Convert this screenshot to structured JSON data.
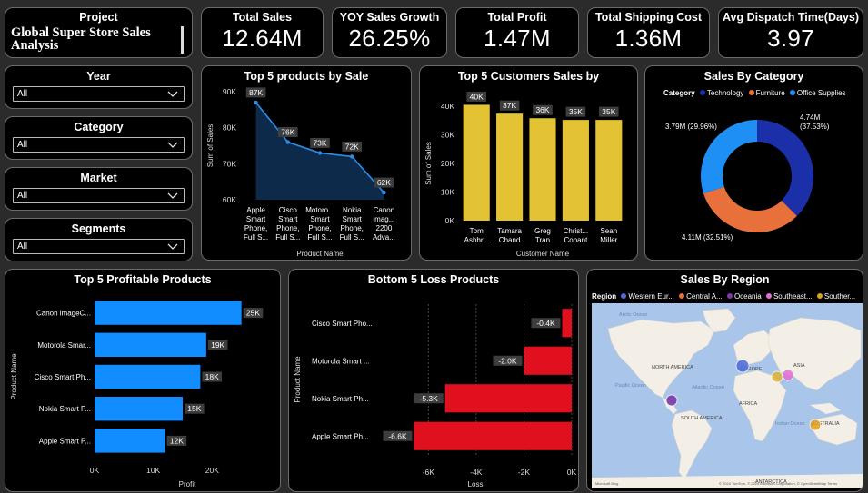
{
  "kpis": {
    "project": {
      "title": "Project",
      "value": "Global Super Store Sales Analysis"
    },
    "total_sales": {
      "title": "Total Sales",
      "value": "12.64M"
    },
    "yoy_growth": {
      "title": "YOY Sales Growth",
      "value": "26.25%"
    },
    "total_profit": {
      "title": "Total Profit",
      "value": "1.47M"
    },
    "shipping_cost": {
      "title": "Total Shipping Cost",
      "value": "1.36M"
    },
    "dispatch_time": {
      "title": "Avg Dispatch Time(Days)",
      "value": "3.97"
    }
  },
  "slicers": [
    {
      "title": "Year",
      "value": "All"
    },
    {
      "title": "Category",
      "value": "All"
    },
    {
      "title": "Market",
      "value": "All"
    },
    {
      "title": "Segments",
      "value": "All"
    }
  ],
  "colors": {
    "blue": "#118dff",
    "line_blue": "#2a8de8",
    "area_blue": "#0d2a4a",
    "gold": "#e3c233",
    "red": "#e0101e",
    "technology": "#1a2fa8",
    "furniture": "#e8703a",
    "office": "#1e8ff5",
    "badge": "#3d3d3d"
  },
  "map": {
    "title": "Sales By Region",
    "legend_label": "Region",
    "legend_items": [
      {
        "label": "Western Eur...",
        "color": "#4f6bd6"
      },
      {
        "label": "Central A...",
        "color": "#e8703a"
      },
      {
        "label": "Oceania",
        "color": "#7a3aa8"
      },
      {
        "label": "Southeast...",
        "color": "#e46fd0"
      },
      {
        "label": "Souther...",
        "color": "#e0a020"
      }
    ],
    "labels": {
      "arctic": "Arctic Ocean",
      "na": "NORTH AMERICA",
      "europe": "EUROPE",
      "asia": "ASIA",
      "africa": "AFRICA",
      "sa": "SOUTH AMERICA",
      "australia": "AUSTRALIA",
      "antarctica": "ANTARCTICA",
      "pacific": "Pacific Ocean",
      "atlantic": "Atlantic Ocean",
      "indian": "Indian Ocean"
    },
    "attribution": "© 2024 TomTom, © 2024 Microsoft Corporation, © OpenStreetMap  Terms",
    "brand": "Microsoft Bing"
  },
  "chart_data": [
    {
      "id": "top5_products",
      "type": "line",
      "title": "Top 5 products by Sale",
      "xlabel": "Product Name",
      "ylabel": "Sum of Sales",
      "categories": [
        [
          "Apple",
          "Smart",
          "Phone,",
          "Full S..."
        ],
        [
          "Cisco",
          "Smart",
          "Phone,",
          "Full S..."
        ],
        [
          "Motoro...",
          "Smart",
          "Phone,",
          "Full S..."
        ],
        [
          "Nokia",
          "Smart",
          "Phone,",
          "Full S..."
        ],
        [
          "Canon",
          "imag...",
          "2200",
          "Adva..."
        ]
      ],
      "values": [
        87000,
        76000,
        73000,
        72000,
        62000
      ],
      "labels": [
        "87K",
        "76K",
        "73K",
        "72K",
        "62K"
      ],
      "yticks": [
        "60K",
        "70K",
        "80K",
        "90K"
      ],
      "ylim": [
        60000,
        90000
      ]
    },
    {
      "id": "top5_customers",
      "type": "bar",
      "title": "Top 5 Customers Sales by",
      "xlabel": "Customer Name",
      "ylabel": "Sum of Sales",
      "categories": [
        [
          "Tom",
          "Ashbr..."
        ],
        [
          "Tamara",
          "Chand"
        ],
        [
          "Greg",
          "Tran"
        ],
        [
          "Christ...",
          "Conant"
        ],
        [
          "Sean",
          "Miller"
        ]
      ],
      "values": [
        40500,
        37400,
        35800,
        35200,
        35200
      ],
      "labels": [
        "40K",
        "37K",
        "36K",
        "35K",
        "35K"
      ],
      "yticks": [
        "0K",
        "10K",
        "20K",
        "30K",
        "40K"
      ],
      "ylim": [
        0,
        40000
      ]
    },
    {
      "id": "sales_by_category",
      "type": "pie",
      "title": "Sales By Category",
      "legend_title": "Category",
      "slices": [
        {
          "name": "Technology",
          "value": 4.74,
          "label": "4.74M",
          "pct": "(37.53%)"
        },
        {
          "name": "Furniture",
          "value": 4.11,
          "label": "4.11M (32.51%)"
        },
        {
          "name": "Office Supplies",
          "value": 3.79,
          "label": "3.79M (29.96%)"
        }
      ]
    },
    {
      "id": "top5_profitable",
      "type": "bar",
      "title": "Top 5 Profitable Products",
      "xlabel": "Profit",
      "ylabel": "Product Name",
      "categories": [
        "Canon imageC...",
        "Motorola Smar...",
        "Cisco Smart Ph...",
        "Nokia Smart P...",
        "Apple Smart P..."
      ],
      "values": [
        25000,
        19000,
        18000,
        15000,
        12000
      ],
      "labels": [
        "25K",
        "19K",
        "18K",
        "15K",
        "12K"
      ],
      "xticks": [
        "0K",
        "10K",
        "20K"
      ],
      "xlim": [
        0,
        30000
      ]
    },
    {
      "id": "bottom5_loss",
      "type": "bar",
      "title": "Bottom 5 Loss Products",
      "xlabel": "Loss",
      "ylabel": "Product Name",
      "categories": [
        "Cisco Smart Pho...",
        "Motorola Smart ...",
        "Nokia Smart Ph...",
        "Apple Smart Ph..."
      ],
      "values": [
        -400,
        -2000,
        -5300,
        -6600
      ],
      "labels": [
        "-0.4K",
        "-2.0K",
        "-5.3K",
        "-6.6K"
      ],
      "xticks": [
        "-6K",
        "-4K",
        "-2K",
        "0K"
      ],
      "xlim": [
        -7000,
        0
      ]
    }
  ]
}
